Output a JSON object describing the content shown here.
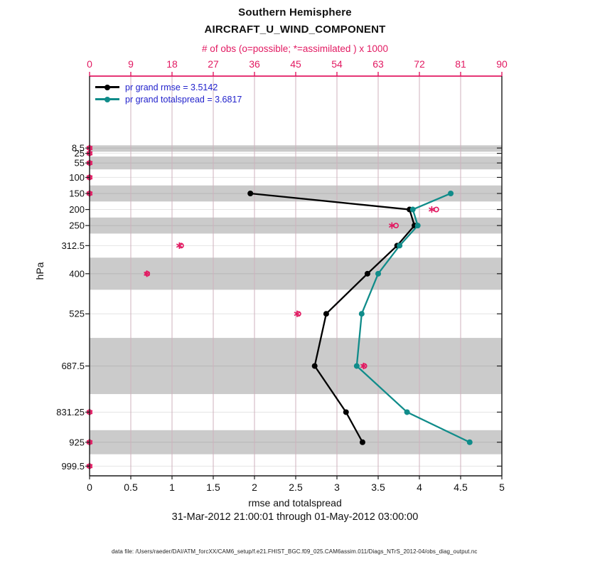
{
  "title": "Southern Hemisphere",
  "subtitle": "AIRCRAFT_U_WIND_COMPONENT",
  "top_axis": {
    "label": "# of obs (o=possible; *=assimilated ) x 1000",
    "ticks": [
      0,
      9,
      18,
      27,
      36,
      45,
      54,
      63,
      72,
      81,
      90
    ],
    "range": [
      0,
      90
    ],
    "color": "#e21a62"
  },
  "bottom_axis": {
    "label": "rmse and totalspread",
    "ticks": [
      0,
      0.5,
      1,
      1.5,
      2,
      2.5,
      3,
      3.5,
      4,
      4.5,
      5
    ],
    "range": [
      0,
      5
    ]
  },
  "left_axis": {
    "label": "hPa",
    "ticks": [
      8.5,
      25,
      55,
      100,
      150,
      200,
      250,
      312.5,
      400,
      525,
      687.5,
      831.25,
      925,
      999.5
    ]
  },
  "legend": {
    "text_color": "#2222cc",
    "entries": [
      {
        "series": "rmse",
        "label": "pr grand rmse = 3.5142",
        "color": "#000000"
      },
      {
        "series": "totalspread",
        "label": "pr grand totalspread = 3.6817",
        "color": "#108c8a"
      }
    ]
  },
  "caption": "31-Mar-2012 21:00:01 through 01-May-2012 03:00:00",
  "footer": "data file: /Users/raeder/DAI/ATM_forcXX/CAM6_setup/f.e21.FHIST_BGC.f09_025.CAM6assim.011/Diags_NTrS_2012-04/obs_diag_output.nc",
  "chart_data": {
    "type": "line",
    "title": "Southern Hemisphere AIRCRAFT_U_WIND_COMPONENT vertical profile",
    "xlabel": "rmse and totalspread",
    "ylabel": "hPa",
    "xlim": [
      0,
      5
    ],
    "top_xlim": [
      0,
      90
    ],
    "y_levels_hpa": [
      8.5,
      25,
      55,
      100,
      150,
      200,
      250,
      312.5,
      400,
      525,
      687.5,
      831.25,
      925,
      999.5
    ],
    "y_direction": "pressure increases downward",
    "grid": true,
    "legend_position": "top-left-inside",
    "series": [
      {
        "name": "pr grand rmse",
        "color": "#000000",
        "values": [
          null,
          null,
          null,
          null,
          1.95,
          3.88,
          3.94,
          3.73,
          3.37,
          2.87,
          2.73,
          3.11,
          3.31,
          null
        ]
      },
      {
        "name": "pr grand totalspread",
        "color": "#108c8a",
        "values": [
          null,
          null,
          null,
          null,
          4.38,
          3.92,
          3.98,
          3.76,
          3.5,
          3.3,
          3.24,
          3.85,
          4.61,
          null
        ]
      }
    ],
    "obs_counts_x1000": {
      "marker_color": "#e21a62",
      "possible": [
        0,
        0,
        0,
        0,
        0,
        75.7,
        66.9,
        20.0,
        12.6,
        45.6,
        60.0,
        0,
        0,
        0
      ],
      "assimilated": [
        0,
        0,
        0,
        0,
        0,
        74.7,
        66.0,
        19.6,
        12.5,
        45.3,
        59.8,
        0,
        0,
        0
      ]
    },
    "shaded_bands_hpa": [
      [
        0,
        20
      ],
      [
        35,
        75
      ],
      [
        125,
        175
      ],
      [
        225,
        275
      ],
      [
        350,
        450
      ],
      [
        600,
        775
      ],
      [
        887.5,
        962.5
      ]
    ],
    "band_color": "#cbcbcb"
  }
}
